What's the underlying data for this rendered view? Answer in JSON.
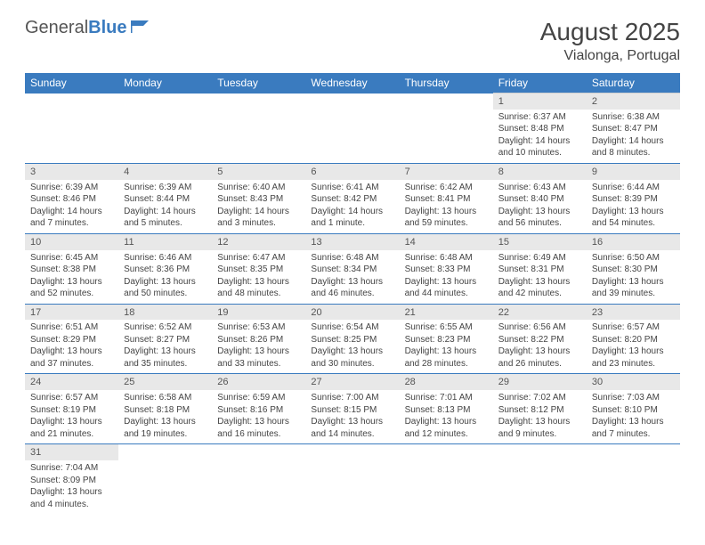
{
  "logo": {
    "part1": "General",
    "part2": "Blue"
  },
  "title": "August 2025",
  "location": "Vialonga, Portugal",
  "colors": {
    "header_bg": "#3a7bbf",
    "daynum_bg": "#e8e8e8",
    "text": "#444444"
  },
  "day_names": [
    "Sunday",
    "Monday",
    "Tuesday",
    "Wednesday",
    "Thursday",
    "Friday",
    "Saturday"
  ],
  "weeks": [
    [
      null,
      null,
      null,
      null,
      null,
      {
        "n": "1",
        "sr": "Sunrise: 6:37 AM",
        "ss": "Sunset: 8:48 PM",
        "dl": "Daylight: 14 hours and 10 minutes."
      },
      {
        "n": "2",
        "sr": "Sunrise: 6:38 AM",
        "ss": "Sunset: 8:47 PM",
        "dl": "Daylight: 14 hours and 8 minutes."
      }
    ],
    [
      {
        "n": "3",
        "sr": "Sunrise: 6:39 AM",
        "ss": "Sunset: 8:46 PM",
        "dl": "Daylight: 14 hours and 7 minutes."
      },
      {
        "n": "4",
        "sr": "Sunrise: 6:39 AM",
        "ss": "Sunset: 8:44 PM",
        "dl": "Daylight: 14 hours and 5 minutes."
      },
      {
        "n": "5",
        "sr": "Sunrise: 6:40 AM",
        "ss": "Sunset: 8:43 PM",
        "dl": "Daylight: 14 hours and 3 minutes."
      },
      {
        "n": "6",
        "sr": "Sunrise: 6:41 AM",
        "ss": "Sunset: 8:42 PM",
        "dl": "Daylight: 14 hours and 1 minute."
      },
      {
        "n": "7",
        "sr": "Sunrise: 6:42 AM",
        "ss": "Sunset: 8:41 PM",
        "dl": "Daylight: 13 hours and 59 minutes."
      },
      {
        "n": "8",
        "sr": "Sunrise: 6:43 AM",
        "ss": "Sunset: 8:40 PM",
        "dl": "Daylight: 13 hours and 56 minutes."
      },
      {
        "n": "9",
        "sr": "Sunrise: 6:44 AM",
        "ss": "Sunset: 8:39 PM",
        "dl": "Daylight: 13 hours and 54 minutes."
      }
    ],
    [
      {
        "n": "10",
        "sr": "Sunrise: 6:45 AM",
        "ss": "Sunset: 8:38 PM",
        "dl": "Daylight: 13 hours and 52 minutes."
      },
      {
        "n": "11",
        "sr": "Sunrise: 6:46 AM",
        "ss": "Sunset: 8:36 PM",
        "dl": "Daylight: 13 hours and 50 minutes."
      },
      {
        "n": "12",
        "sr": "Sunrise: 6:47 AM",
        "ss": "Sunset: 8:35 PM",
        "dl": "Daylight: 13 hours and 48 minutes."
      },
      {
        "n": "13",
        "sr": "Sunrise: 6:48 AM",
        "ss": "Sunset: 8:34 PM",
        "dl": "Daylight: 13 hours and 46 minutes."
      },
      {
        "n": "14",
        "sr": "Sunrise: 6:48 AM",
        "ss": "Sunset: 8:33 PM",
        "dl": "Daylight: 13 hours and 44 minutes."
      },
      {
        "n": "15",
        "sr": "Sunrise: 6:49 AM",
        "ss": "Sunset: 8:31 PM",
        "dl": "Daylight: 13 hours and 42 minutes."
      },
      {
        "n": "16",
        "sr": "Sunrise: 6:50 AM",
        "ss": "Sunset: 8:30 PM",
        "dl": "Daylight: 13 hours and 39 minutes."
      }
    ],
    [
      {
        "n": "17",
        "sr": "Sunrise: 6:51 AM",
        "ss": "Sunset: 8:29 PM",
        "dl": "Daylight: 13 hours and 37 minutes."
      },
      {
        "n": "18",
        "sr": "Sunrise: 6:52 AM",
        "ss": "Sunset: 8:27 PM",
        "dl": "Daylight: 13 hours and 35 minutes."
      },
      {
        "n": "19",
        "sr": "Sunrise: 6:53 AM",
        "ss": "Sunset: 8:26 PM",
        "dl": "Daylight: 13 hours and 33 minutes."
      },
      {
        "n": "20",
        "sr": "Sunrise: 6:54 AM",
        "ss": "Sunset: 8:25 PM",
        "dl": "Daylight: 13 hours and 30 minutes."
      },
      {
        "n": "21",
        "sr": "Sunrise: 6:55 AM",
        "ss": "Sunset: 8:23 PM",
        "dl": "Daylight: 13 hours and 28 minutes."
      },
      {
        "n": "22",
        "sr": "Sunrise: 6:56 AM",
        "ss": "Sunset: 8:22 PM",
        "dl": "Daylight: 13 hours and 26 minutes."
      },
      {
        "n": "23",
        "sr": "Sunrise: 6:57 AM",
        "ss": "Sunset: 8:20 PM",
        "dl": "Daylight: 13 hours and 23 minutes."
      }
    ],
    [
      {
        "n": "24",
        "sr": "Sunrise: 6:57 AM",
        "ss": "Sunset: 8:19 PM",
        "dl": "Daylight: 13 hours and 21 minutes."
      },
      {
        "n": "25",
        "sr": "Sunrise: 6:58 AM",
        "ss": "Sunset: 8:18 PM",
        "dl": "Daylight: 13 hours and 19 minutes."
      },
      {
        "n": "26",
        "sr": "Sunrise: 6:59 AM",
        "ss": "Sunset: 8:16 PM",
        "dl": "Daylight: 13 hours and 16 minutes."
      },
      {
        "n": "27",
        "sr": "Sunrise: 7:00 AM",
        "ss": "Sunset: 8:15 PM",
        "dl": "Daylight: 13 hours and 14 minutes."
      },
      {
        "n": "28",
        "sr": "Sunrise: 7:01 AM",
        "ss": "Sunset: 8:13 PM",
        "dl": "Daylight: 13 hours and 12 minutes."
      },
      {
        "n": "29",
        "sr": "Sunrise: 7:02 AM",
        "ss": "Sunset: 8:12 PM",
        "dl": "Daylight: 13 hours and 9 minutes."
      },
      {
        "n": "30",
        "sr": "Sunrise: 7:03 AM",
        "ss": "Sunset: 8:10 PM",
        "dl": "Daylight: 13 hours and 7 minutes."
      }
    ],
    [
      {
        "n": "31",
        "sr": "Sunrise: 7:04 AM",
        "ss": "Sunset: 8:09 PM",
        "dl": "Daylight: 13 hours and 4 minutes."
      },
      null,
      null,
      null,
      null,
      null,
      null
    ]
  ]
}
